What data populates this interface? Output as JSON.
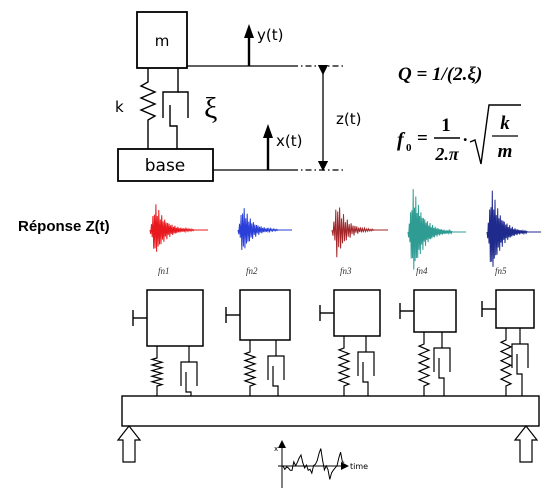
{
  "sdof": {
    "mass_label": "m",
    "base_label": "base",
    "spring_label": "k",
    "damping_label": "ξ",
    "y_label": "y(t)",
    "x_label": "x(t)",
    "z_label": "z(t)"
  },
  "formulas": {
    "q_formula": "Q = 1/(2.ξ)",
    "f0_prefix": "f",
    "f0_sub": "0",
    "f0_frac_num": "1",
    "f0_frac_den": "2.π",
    "f0_root_num": "k",
    "f0_root_den": "m"
  },
  "response": {
    "label": "Réponse Z(t)",
    "signals": [
      {
        "label": "fn1",
        "color": "#e8191e"
      },
      {
        "label": "fn2",
        "color": "#2a3fd8"
      },
      {
        "label": "fn3",
        "color": "#a3262a"
      },
      {
        "label": "fn4",
        "color": "#2f9c94"
      },
      {
        "label": "fn5",
        "color": "#1e2a8c"
      }
    ]
  },
  "excitation": {
    "y_axis_label": "x",
    "x_axis_label": "time"
  }
}
